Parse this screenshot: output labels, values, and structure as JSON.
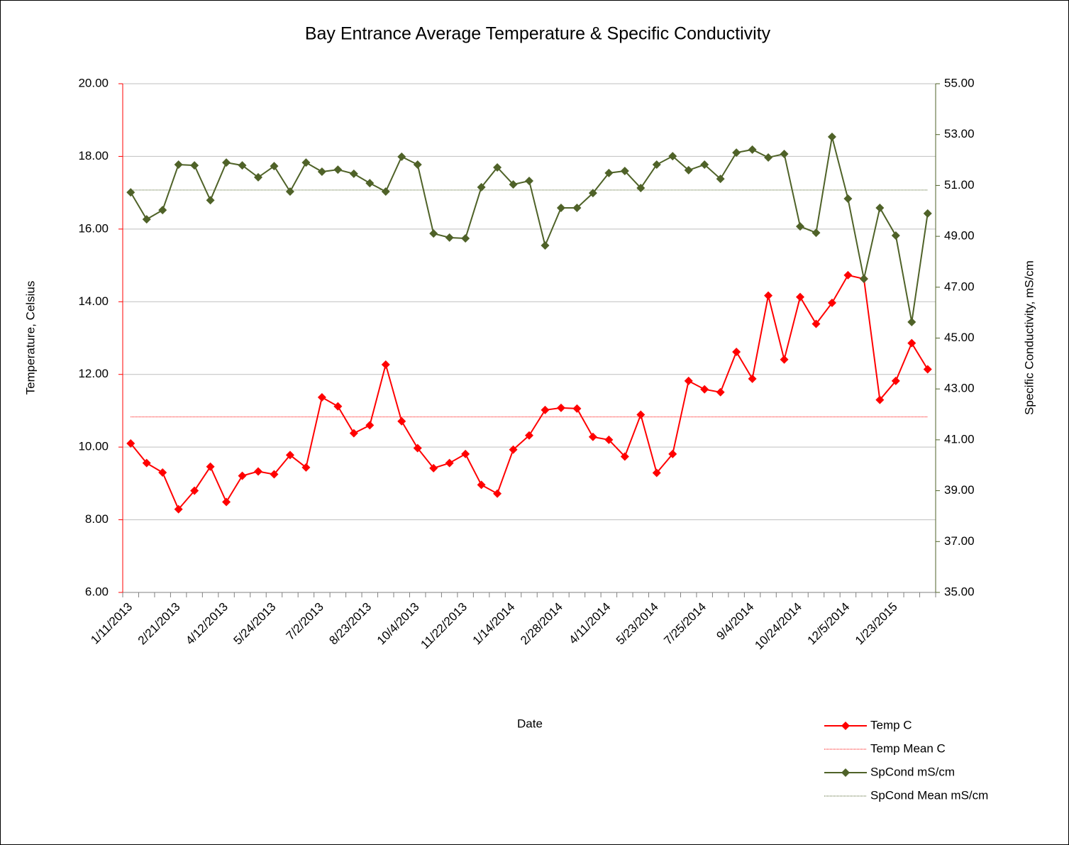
{
  "chart_data": {
    "type": "line",
    "title": "Bay Entrance Average Temperature & Specific Conductivity",
    "xlabel": "Date",
    "ylabel": "Temperature, Celsius",
    "y2label": "Specific Conductivity, mS/cm",
    "categories": [
      "1/11/2013",
      null,
      null,
      "2/21/2013",
      null,
      null,
      "4/12/2013",
      null,
      null,
      "5/24/2013",
      null,
      null,
      "7/2/2013",
      null,
      null,
      "8/23/2013",
      null,
      null,
      "10/4/2013",
      null,
      null,
      "11/22/2013",
      null,
      null,
      "1/14/2014",
      null,
      null,
      "2/28/2014",
      null,
      null,
      "4/11/2014",
      null,
      null,
      "5/23/2014",
      null,
      null,
      "7/25/2014",
      null,
      null,
      "9/4/2014",
      null,
      null,
      "10/24/2014",
      null,
      null,
      "12/5/2014",
      null,
      null,
      "1/23/2015",
      null,
      null
    ],
    "ylim": [
      6,
      20
    ],
    "yticks": [
      {
        "value": 6,
        "label": "6.00"
      },
      {
        "value": 8,
        "label": "8.00"
      },
      {
        "value": 10,
        "label": "10.00"
      },
      {
        "value": 12,
        "label": "12.00"
      },
      {
        "value": 14,
        "label": "14.00"
      },
      {
        "value": 16,
        "label": "16.00"
      },
      {
        "value": 18,
        "label": "18.00"
      },
      {
        "value": 20,
        "label": "20.00"
      }
    ],
    "y2lim": [
      35,
      55
    ],
    "y2ticks": [
      {
        "value": 35,
        "label": "35.00"
      },
      {
        "value": 37,
        "label": "37.00"
      },
      {
        "value": 39,
        "label": "39.00"
      },
      {
        "value": 41,
        "label": "41.00"
      },
      {
        "value": 43,
        "label": "43.00"
      },
      {
        "value": 45,
        "label": "45.00"
      },
      {
        "value": 47,
        "label": "47.00"
      },
      {
        "value": 49,
        "label": "49.00"
      },
      {
        "value": 51,
        "label": "51.00"
      },
      {
        "value": 53,
        "label": "53.00"
      },
      {
        "value": 55,
        "label": "55.00"
      }
    ],
    "grid": true,
    "legend": "bottom-right",
    "series": [
      {
        "name": "Temp C",
        "color": "#ff0000",
        "marker": "diamond",
        "values": [
          10.1,
          9.56,
          9.3,
          8.29,
          8.8,
          9.46,
          8.49,
          9.21,
          9.33,
          9.25,
          9.78,
          9.44,
          11.37,
          11.12,
          10.38,
          10.6,
          12.27,
          10.71,
          9.97,
          9.42,
          9.56,
          9.81,
          8.96,
          8.72,
          9.93,
          10.32,
          11.02,
          11.08,
          11.06,
          10.28,
          10.2,
          9.74,
          10.89,
          9.29,
          9.81,
          11.82,
          11.59,
          11.51,
          12.62,
          11.88,
          14.17,
          12.41,
          14.13,
          13.39,
          13.97,
          14.73,
          14.63,
          11.3,
          11.82,
          12.86,
          12.14
        ]
      },
      {
        "name": "Temp Mean C",
        "color": "#ff0000",
        "style": "dotted",
        "value": 10.83
      },
      {
        "name": "SpCond mS/cm",
        "color": "#4f6228",
        "marker": "diamond",
        "axis": "y2",
        "values": [
          50.73,
          49.67,
          50.03,
          51.82,
          51.79,
          50.42,
          51.9,
          51.79,
          51.32,
          51.76,
          50.76,
          51.9,
          51.54,
          51.62,
          51.46,
          51.09,
          50.76,
          52.13,
          51.82,
          49.11,
          48.95,
          48.92,
          50.93,
          51.71,
          51.04,
          51.18,
          48.64,
          50.12,
          50.12,
          50.7,
          51.49,
          51.57,
          50.9,
          51.82,
          52.15,
          51.6,
          51.82,
          51.26,
          52.29,
          52.41,
          52.1,
          52.24,
          49.39,
          49.14,
          52.91,
          50.48,
          47.33,
          50.12,
          49.03,
          45.63,
          49.9
        ]
      },
      {
        "name": "SpCond Mean mS/cm",
        "color": "#4f6228",
        "style": "dotted",
        "axis": "y2",
        "value": 50.82
      }
    ]
  }
}
